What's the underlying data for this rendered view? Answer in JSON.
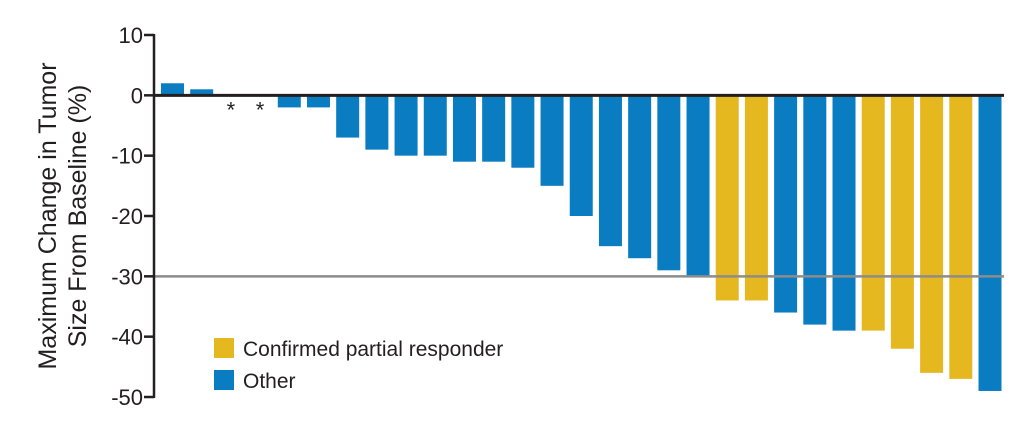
{
  "chart_data": {
    "type": "bar",
    "ylabel_lines": [
      "Maximum Change in Tumor",
      "Size From Baseline (%)"
    ],
    "ylim": [
      -50,
      10
    ],
    "yticks": [
      10,
      0,
      -10,
      -20,
      -30,
      -40,
      -50
    ],
    "ytick_labels": [
      "10",
      "0",
      "-10",
      "-20",
      "-30",
      "-40",
      "-50"
    ],
    "reference_line": -30,
    "grid": false,
    "legend_position": "bottom-left",
    "legend": [
      {
        "key": "partial",
        "label": "Confirmed partial responder",
        "color": "#e6b820"
      },
      {
        "key": "other",
        "label": "Other",
        "color": "#0a7cc1"
      }
    ],
    "values": [
      2,
      1,
      0,
      0,
      -2,
      -2,
      -7,
      -9,
      -10,
      -10,
      -11,
      -11,
      -12,
      -15,
      -20,
      -25,
      -27,
      -29,
      -30,
      -34,
      -34,
      -36,
      -38,
      -39,
      -39,
      -42,
      -46,
      -47,
      -49
    ],
    "groups": [
      "other",
      "other",
      "other",
      "other",
      "other",
      "other",
      "other",
      "other",
      "other",
      "other",
      "other",
      "other",
      "other",
      "other",
      "other",
      "other",
      "other",
      "other",
      "other",
      "partial",
      "partial",
      "other",
      "other",
      "other",
      "partial",
      "partial",
      "partial",
      "partial",
      "other"
    ],
    "markers": [
      "",
      "",
      "*",
      "*",
      "",
      "",
      "",
      "",
      "",
      "",
      "",
      "",
      "",
      "",
      "",
      "",
      "",
      "",
      "",
      "",
      "",
      "",
      "",
      "",
      "",
      "",
      "",
      "",
      ""
    ]
  }
}
